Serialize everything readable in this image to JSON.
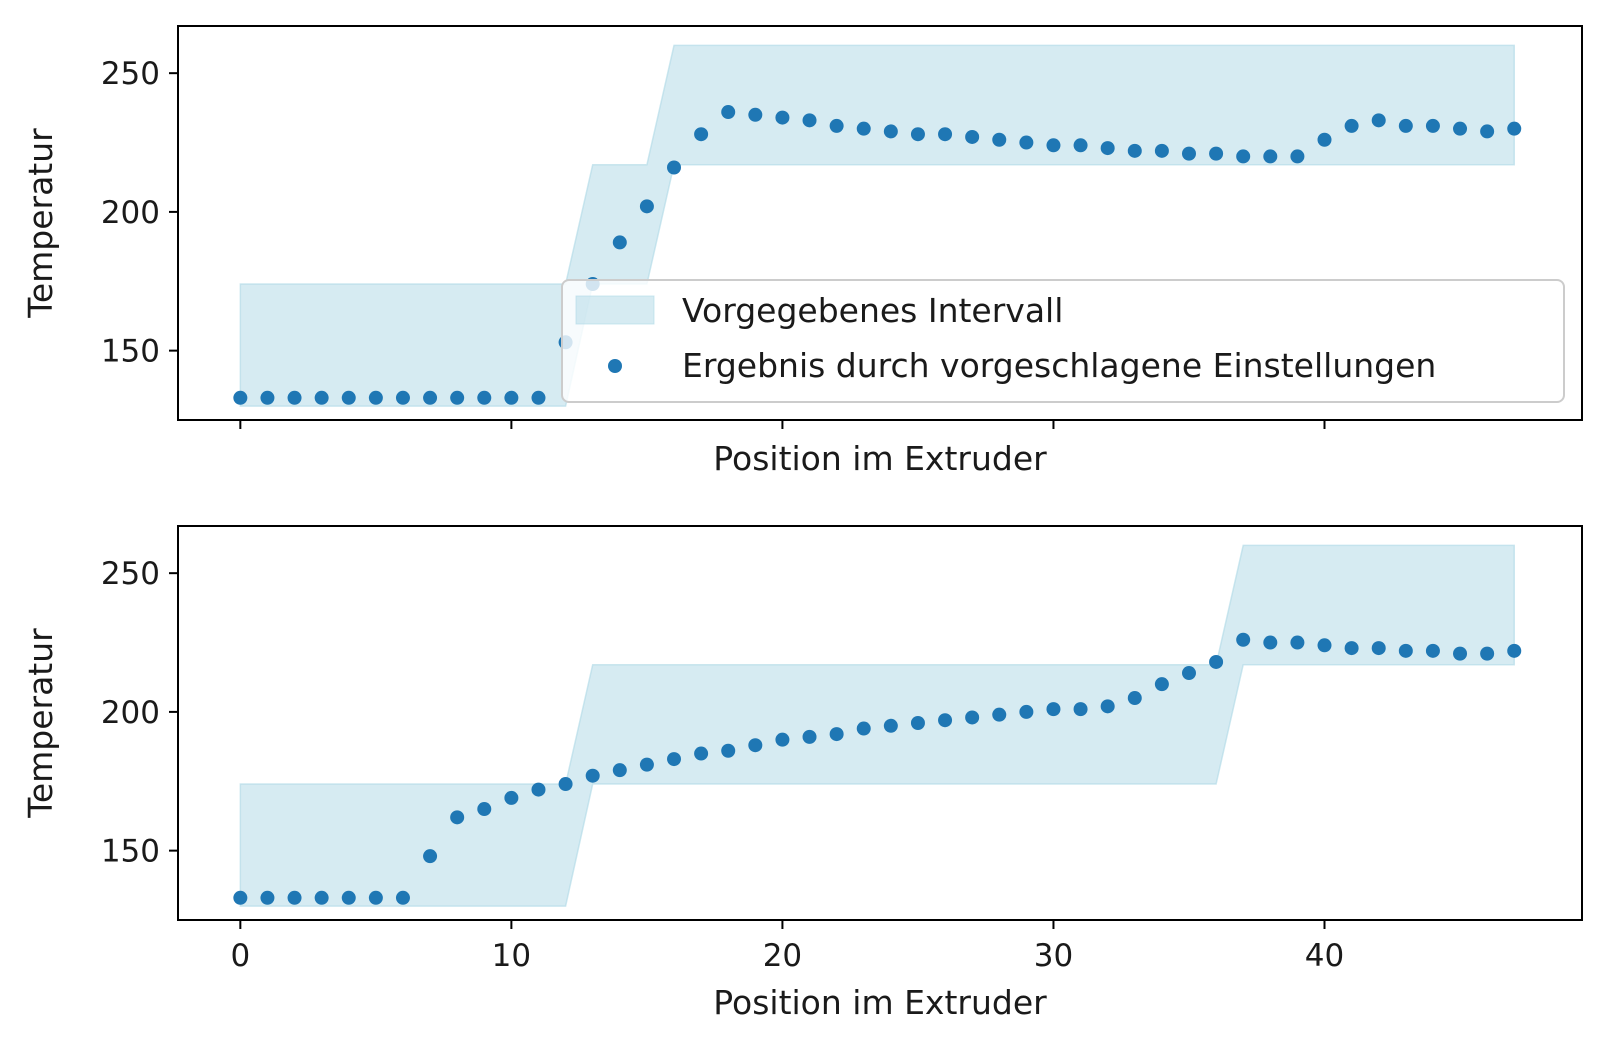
{
  "chart_data": [
    {
      "type": "scatter",
      "xlabel": "Position im Extruder",
      "ylabel": "Temperatur",
      "xlim": [
        -2.3,
        49.5
      ],
      "ylim": [
        125,
        267
      ],
      "yticks": [
        150,
        200,
        250
      ],
      "xticks": [
        0,
        10,
        20,
        30,
        40
      ],
      "show_xtick_labels": false,
      "grid": false,
      "legend": {
        "position": "lower-right",
        "entries": [
          {
            "label": "Vorgegebenes Intervall",
            "kind": "band"
          },
          {
            "label": "Ergebnis durch vorgeschlagene Einstellungen",
            "kind": "points"
          }
        ]
      },
      "band": {
        "name": "Vorgegebenes Intervall",
        "color": "#add8e6",
        "x": [
          0,
          12,
          13,
          15,
          16,
          47
        ],
        "lower": [
          130,
          130,
          174,
          174,
          217,
          217
        ],
        "upper": [
          174,
          174,
          217,
          217,
          260,
          260
        ]
      },
      "series": [
        {
          "name": "Ergebnis durch vorgeschlagene Einstellungen",
          "color": "#1f77b4",
          "x": [
            0,
            1,
            2,
            3,
            4,
            5,
            6,
            7,
            8,
            9,
            10,
            11,
            12,
            13,
            14,
            15,
            16,
            17,
            18,
            19,
            20,
            21,
            22,
            23,
            24,
            25,
            26,
            27,
            28,
            29,
            30,
            31,
            32,
            33,
            34,
            35,
            36,
            37,
            38,
            39,
            40,
            41,
            42,
            43,
            44,
            45,
            46,
            47
          ],
          "y": [
            133,
            133,
            133,
            133,
            133,
            133,
            133,
            133,
            133,
            133,
            133,
            133,
            153,
            174,
            189,
            202,
            216,
            228,
            236,
            235,
            234,
            233,
            231,
            230,
            229,
            228,
            228,
            227,
            226,
            225,
            224,
            224,
            223,
            222,
            222,
            221,
            221,
            220,
            220,
            220,
            226,
            231,
            233,
            231,
            231,
            230,
            229,
            230
          ]
        }
      ]
    },
    {
      "type": "scatter",
      "xlabel": "Position im Extruder",
      "ylabel": "Temperatur",
      "xlim": [
        -2.3,
        49.5
      ],
      "ylim": [
        125,
        267
      ],
      "yticks": [
        150,
        200,
        250
      ],
      "xticks": [
        0,
        10,
        20,
        30,
        40
      ],
      "show_xtick_labels": true,
      "grid": false,
      "band": {
        "name": "Vorgegebenes Intervall",
        "color": "#add8e6",
        "x": [
          0,
          12,
          13,
          36,
          37,
          47
        ],
        "lower": [
          130,
          130,
          174,
          174,
          217,
          217
        ],
        "upper": [
          174,
          174,
          217,
          217,
          260,
          260
        ]
      },
      "series": [
        {
          "name": "Ergebnis durch vorgeschlagene Einstellungen",
          "color": "#1f77b4",
          "x": [
            0,
            1,
            2,
            3,
            4,
            5,
            6,
            7,
            8,
            9,
            10,
            11,
            12,
            13,
            14,
            15,
            16,
            17,
            18,
            19,
            20,
            21,
            22,
            23,
            24,
            25,
            26,
            27,
            28,
            29,
            30,
            31,
            32,
            33,
            34,
            35,
            36,
            37,
            38,
            39,
            40,
            41,
            42,
            43,
            44,
            45,
            46,
            47
          ],
          "y": [
            133,
            133,
            133,
            133,
            133,
            133,
            133,
            148,
            162,
            165,
            169,
            172,
            174,
            177,
            179,
            181,
            183,
            185,
            186,
            188,
            190,
            191,
            192,
            194,
            195,
            196,
            197,
            198,
            199,
            200,
            201,
            201,
            202,
            205,
            210,
            214,
            218,
            226,
            225,
            225,
            224,
            223,
            223,
            222,
            222,
            221,
            221,
            222
          ]
        }
      ]
    }
  ]
}
